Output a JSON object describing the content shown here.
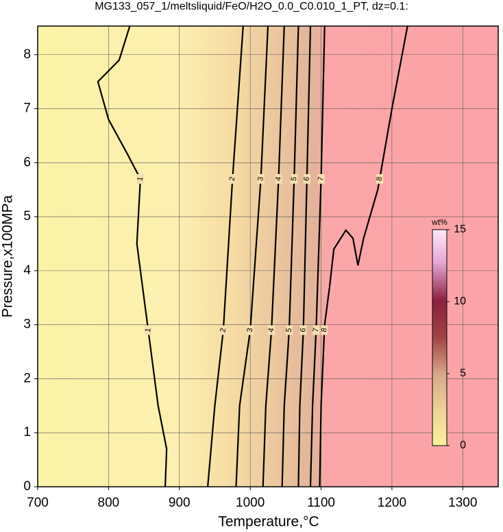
{
  "chart_data": {
    "type": "contour",
    "title": "MG133_057_1/meltsliquid/FeO/H2O_0.0_C0.010_1_PT, dz=0.1:",
    "x_label": "Temperature,°C",
    "y_label": "Pressure,x100MPa",
    "xlim": [
      700,
      1350
    ],
    "ylim": [
      0,
      8.53
    ],
    "xticks": [
      700,
      800,
      900,
      1000,
      1100,
      1200,
      1300
    ],
    "yticks": [
      0,
      1,
      2,
      3,
      4,
      5,
      6,
      7,
      8
    ],
    "grid": true,
    "contours": [
      {
        "level": 1,
        "x": [
          830,
          815,
          785,
          800,
          825,
          845,
          840,
          855,
          870,
          882,
          880
        ],
        "y": [
          8.53,
          7.9,
          7.5,
          6.8,
          6.2,
          5.7,
          4.5,
          3,
          1.5,
          0.7,
          0
        ]
      },
      {
        "level": 2,
        "x": [
          990,
          975,
          962,
          950,
          940
        ],
        "y": [
          8.53,
          5.7,
          2.9,
          1.5,
          0
        ]
      },
      {
        "level": 3,
        "x": [
          1025,
          1015,
          1000,
          985,
          980
        ],
        "y": [
          8.53,
          5.7,
          2.9,
          1.5,
          0
        ]
      },
      {
        "level": 4,
        "x": [
          1048,
          1040,
          1030,
          1022,
          1018
        ],
        "y": [
          8.53,
          5.7,
          2.9,
          1.5,
          0
        ]
      },
      {
        "level": 5,
        "x": [
          1068,
          1062,
          1055,
          1048,
          1045
        ],
        "y": [
          8.53,
          5.7,
          2.9,
          1.5,
          0
        ]
      },
      {
        "level": 6,
        "x": [
          1085,
          1080,
          1075,
          1070,
          1068
        ],
        "y": [
          8.53,
          5.7,
          2.9,
          1.5,
          0
        ]
      },
      {
        "level": 7,
        "x": [
          1105,
          1100,
          1093,
          1088,
          1085
        ],
        "y": [
          8.53,
          5.7,
          2.9,
          1.5,
          0
        ]
      },
      {
        "level": 8,
        "x": [
          1222,
          1200,
          1180,
          1160,
          1152,
          1145,
          1135,
          1118,
          1112,
          1105,
          1100,
          1098
        ],
        "y": [
          8.53,
          7,
          5.5,
          4.6,
          4.1,
          4.6,
          4.75,
          4.4,
          3.7,
          3,
          1.5,
          0
        ]
      }
    ],
    "colorbar": {
      "label": "wt%",
      "lim": [
        0,
        15
      ],
      "ticks": [
        0,
        5,
        10,
        15
      ]
    }
  }
}
